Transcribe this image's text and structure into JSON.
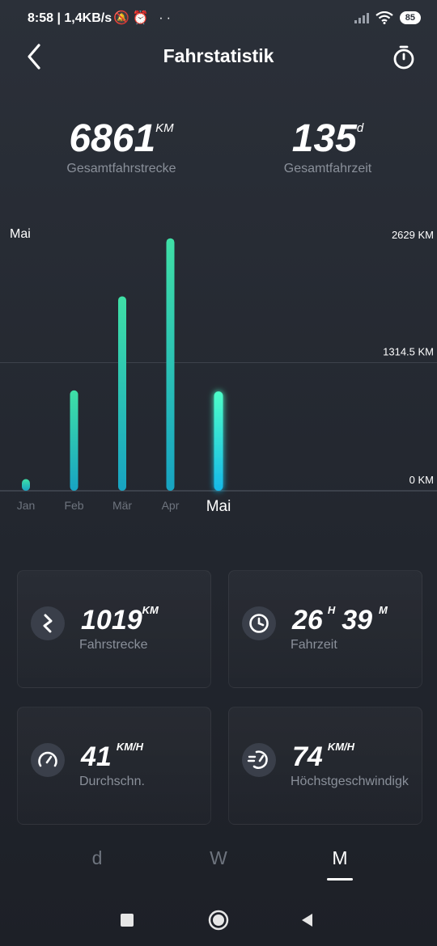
{
  "status": {
    "time": "8:58 | 1,4KB/s",
    "icons": "🔕⏰ ··",
    "battery": "85"
  },
  "header": {
    "title": "Fahrstatistik",
    "back_icon": "chevron-left-icon",
    "timer_icon": "stopwatch-icon"
  },
  "totals": {
    "distance": {
      "value": "6861",
      "unit": "KM",
      "label": "Gesamtfahrstrecke"
    },
    "time": {
      "value": "135",
      "unit": "d",
      "label": "Gesamtfahrzeit"
    }
  },
  "chart_data": {
    "type": "bar",
    "title": "Mai",
    "categories": [
      "Jan",
      "Feb",
      "Mär",
      "Apr",
      "Mai"
    ],
    "values": [
      120,
      1030,
      1995,
      2590,
      1019
    ],
    "selected": "Mai",
    "y_tick_labels": [
      "2629 KM",
      "1314.5 KM",
      "0 KM"
    ],
    "ylim": [
      0,
      2629
    ],
    "grid": true,
    "colors": {
      "bar_top": "#3fe0a6",
      "bar_bottom": "#17a3c2",
      "selected_top": "#4dffc8",
      "selected_bottom": "#16b8e8"
    }
  },
  "cards": [
    {
      "icon": "route-icon",
      "value": "1019",
      "unit": "KM",
      "label": "Fahrstrecke"
    },
    {
      "icon": "clock-icon",
      "value_h": "26",
      "unit_h": "H",
      "value_m": "39",
      "unit_m": "M",
      "label": "Fahrzeit"
    },
    {
      "icon": "speedometer-icon",
      "value": "41",
      "unit": "KM/H",
      "label": "Durchschn."
    },
    {
      "icon": "fast-speed-icon",
      "value": "74",
      "unit": "KM/H",
      "label": "Höchstgeschwindigk"
    }
  ],
  "period_tabs": {
    "d": "d",
    "w": "W",
    "m": "M",
    "active": "M"
  }
}
